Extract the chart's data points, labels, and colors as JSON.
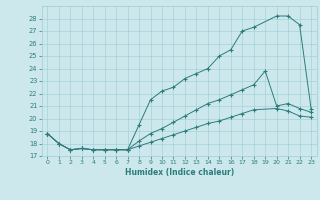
{
  "xlabel": "Humidex (Indice chaleur)",
  "bg_color": "#cce8ed",
  "grid_color": "#9ecdd4",
  "line_color": "#2d7c7c",
  "xlim": [
    -0.5,
    23.5
  ],
  "ylim": [
    17,
    29
  ],
  "line1_x": [
    0,
    1,
    2,
    3,
    4,
    5,
    6,
    7,
    8,
    9,
    10,
    11,
    12,
    13,
    14,
    15,
    16,
    17,
    18,
    20,
    21,
    22,
    23
  ],
  "line1_y": [
    18.8,
    18.0,
    17.5,
    17.6,
    17.5,
    17.5,
    17.5,
    17.5,
    19.5,
    21.5,
    22.2,
    22.5,
    23.2,
    23.6,
    24.0,
    25.0,
    25.5,
    27.0,
    27.3,
    28.2,
    28.2,
    27.5,
    20.8
  ],
  "line2_x": [
    0,
    1,
    2,
    3,
    4,
    5,
    6,
    7,
    8,
    9,
    10,
    11,
    12,
    13,
    14,
    15,
    16,
    17,
    18,
    19,
    20,
    21,
    22,
    23
  ],
  "line2_y": [
    18.8,
    18.0,
    17.5,
    17.6,
    17.5,
    17.5,
    17.5,
    17.5,
    18.2,
    18.8,
    19.2,
    19.7,
    20.2,
    20.7,
    21.2,
    21.5,
    21.9,
    22.3,
    22.7,
    23.8,
    21.0,
    21.2,
    20.8,
    20.5
  ],
  "line3_x": [
    0,
    1,
    2,
    3,
    4,
    5,
    6,
    7,
    8,
    9,
    10,
    11,
    12,
    13,
    14,
    15,
    16,
    17,
    18,
    20,
    21,
    22,
    23
  ],
  "line3_y": [
    18.8,
    18.0,
    17.5,
    17.6,
    17.5,
    17.5,
    17.5,
    17.5,
    17.8,
    18.1,
    18.4,
    18.7,
    19.0,
    19.3,
    19.6,
    19.8,
    20.1,
    20.4,
    20.7,
    20.8,
    20.6,
    20.2,
    20.1
  ],
  "xticks": [
    0,
    1,
    2,
    3,
    4,
    5,
    6,
    7,
    8,
    9,
    10,
    11,
    12,
    13,
    14,
    15,
    16,
    17,
    18,
    19,
    20,
    21,
    22,
    23
  ],
  "yticks": [
    17,
    18,
    19,
    20,
    21,
    22,
    23,
    24,
    25,
    26,
    27,
    28
  ]
}
